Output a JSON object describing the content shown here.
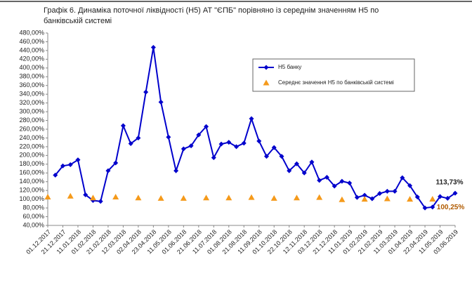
{
  "chart_data": {
    "type": "line",
    "title": "Графік 6.  Динаміка поточної ліквідності (Н5) АТ \"ЄПБ\" порівняно із середнім значенням Н5 по банківській системі",
    "categories": [
      "01.12.2017",
      null,
      "21.12.2017",
      null,
      "11.01.2018",
      null,
      "01.02.2018",
      null,
      "21.02.2018",
      null,
      "12.03.2018",
      null,
      "02.04.2018",
      null,
      "23.04.2018",
      null,
      "11.05.2018",
      null,
      "01.06.2018",
      null,
      "21.06.2018",
      null,
      "11.07.2018",
      null,
      "01.08.2018",
      null,
      "21.08.2018",
      null,
      "11.09.2018",
      null,
      "01.10.2018",
      null,
      "22.10.2018",
      null,
      "12.11.2018",
      null,
      "03.12.2018",
      null,
      "21.12.2018",
      null,
      "11.01.2019",
      null,
      "01.02.2019",
      null,
      "21.02.2019",
      null,
      "11.03.2019",
      null,
      "01.04.2019",
      null,
      "22.04.2019",
      null,
      "11.05.2019",
      null,
      "03.06.2019"
    ],
    "series": [
      {
        "name": "Н5 банку",
        "color": "#0000cc",
        "marker": "diamond",
        "show_line": true,
        "values": [
          null,
          155,
          176,
          179,
          190,
          110,
          97,
          95,
          165,
          183,
          268,
          227,
          240,
          345,
          447,
          322,
          242,
          165,
          215,
          222,
          247,
          266,
          195,
          226,
          230,
          220,
          228,
          284,
          233,
          198,
          218,
          198,
          165,
          181,
          160,
          185,
          143,
          150,
          130,
          141,
          137,
          104,
          109,
          101,
          113,
          118,
          118,
          149,
          131,
          105,
          80,
          82,
          106,
          102,
          113.73
        ],
        "value_labels": [
          null,
          null,
          null,
          null,
          null,
          null,
          null,
          null,
          null,
          null,
          null,
          null,
          null,
          null,
          null,
          null,
          null,
          null,
          null,
          null,
          null,
          null,
          null,
          null,
          null,
          null,
          null,
          null,
          null,
          null,
          null,
          null,
          null,
          null,
          null,
          null,
          null,
          null,
          null,
          null,
          null,
          null,
          null,
          null,
          null,
          null,
          null,
          null,
          null,
          null,
          null,
          null,
          null,
          null,
          "113,73%"
        ]
      },
      {
        "name": "Середнє значення Н5 по банківській системі",
        "color": "#f59a1b",
        "marker": "triangle",
        "show_line": false,
        "values": [
          105,
          null,
          null,
          107,
          null,
          null,
          103,
          null,
          null,
          105,
          null,
          null,
          103,
          null,
          null,
          102,
          null,
          null,
          102,
          null,
          null,
          103,
          null,
          null,
          103,
          null,
          null,
          104,
          null,
          null,
          102,
          null,
          null,
          103,
          null,
          null,
          104,
          null,
          null,
          99,
          null,
          null,
          100,
          null,
          null,
          101,
          null,
          null,
          100,
          null,
          null,
          100.25,
          null,
          null,
          null
        ],
        "value_labels": [
          null,
          null,
          null,
          null,
          null,
          null,
          null,
          null,
          null,
          null,
          null,
          null,
          null,
          null,
          null,
          null,
          null,
          null,
          null,
          null,
          null,
          null,
          null,
          null,
          null,
          null,
          null,
          null,
          null,
          null,
          null,
          null,
          null,
          null,
          null,
          null,
          null,
          null,
          null,
          null,
          null,
          null,
          null,
          null,
          null,
          null,
          null,
          null,
          null,
          null,
          null,
          "100,25%",
          null,
          null,
          null
        ]
      }
    ],
    "ylim": [
      40,
      480
    ],
    "yticks": [
      {
        "value": 40,
        "label": "40,00%"
      },
      {
        "value": 60,
        "label": "60,00%"
      },
      {
        "value": 80,
        "label": "80,00%"
      },
      {
        "value": 100,
        "label": "100,00%"
      },
      {
        "value": 120,
        "label": "120,00%"
      },
      {
        "value": 140,
        "label": "140,00%"
      },
      {
        "value": 160,
        "label": "160,00%"
      },
      {
        "value": 180,
        "label": "180,00%"
      },
      {
        "value": 200,
        "label": "200,00%"
      },
      {
        "value": 220,
        "label": "220,00%"
      },
      {
        "value": 240,
        "label": "240,00%"
      },
      {
        "value": 260,
        "label": "260,00%"
      },
      {
        "value": 280,
        "label": "280,00%"
      },
      {
        "value": 300,
        "label": "300,00%"
      },
      {
        "value": 320,
        "label": "320,00%"
      },
      {
        "value": 340,
        "label": "340,00%"
      },
      {
        "value": 360,
        "label": "360,00%"
      },
      {
        "value": 380,
        "label": "380,00%"
      },
      {
        "value": 400,
        "label": "400,00%"
      },
      {
        "value": 420,
        "label": "420,00%"
      },
      {
        "value": 440,
        "label": "440,00%"
      },
      {
        "value": 460,
        "label": "460,00%"
      },
      {
        "value": 480,
        "label": "480,00%"
      }
    ],
    "grid": false,
    "legend": "upper right"
  }
}
